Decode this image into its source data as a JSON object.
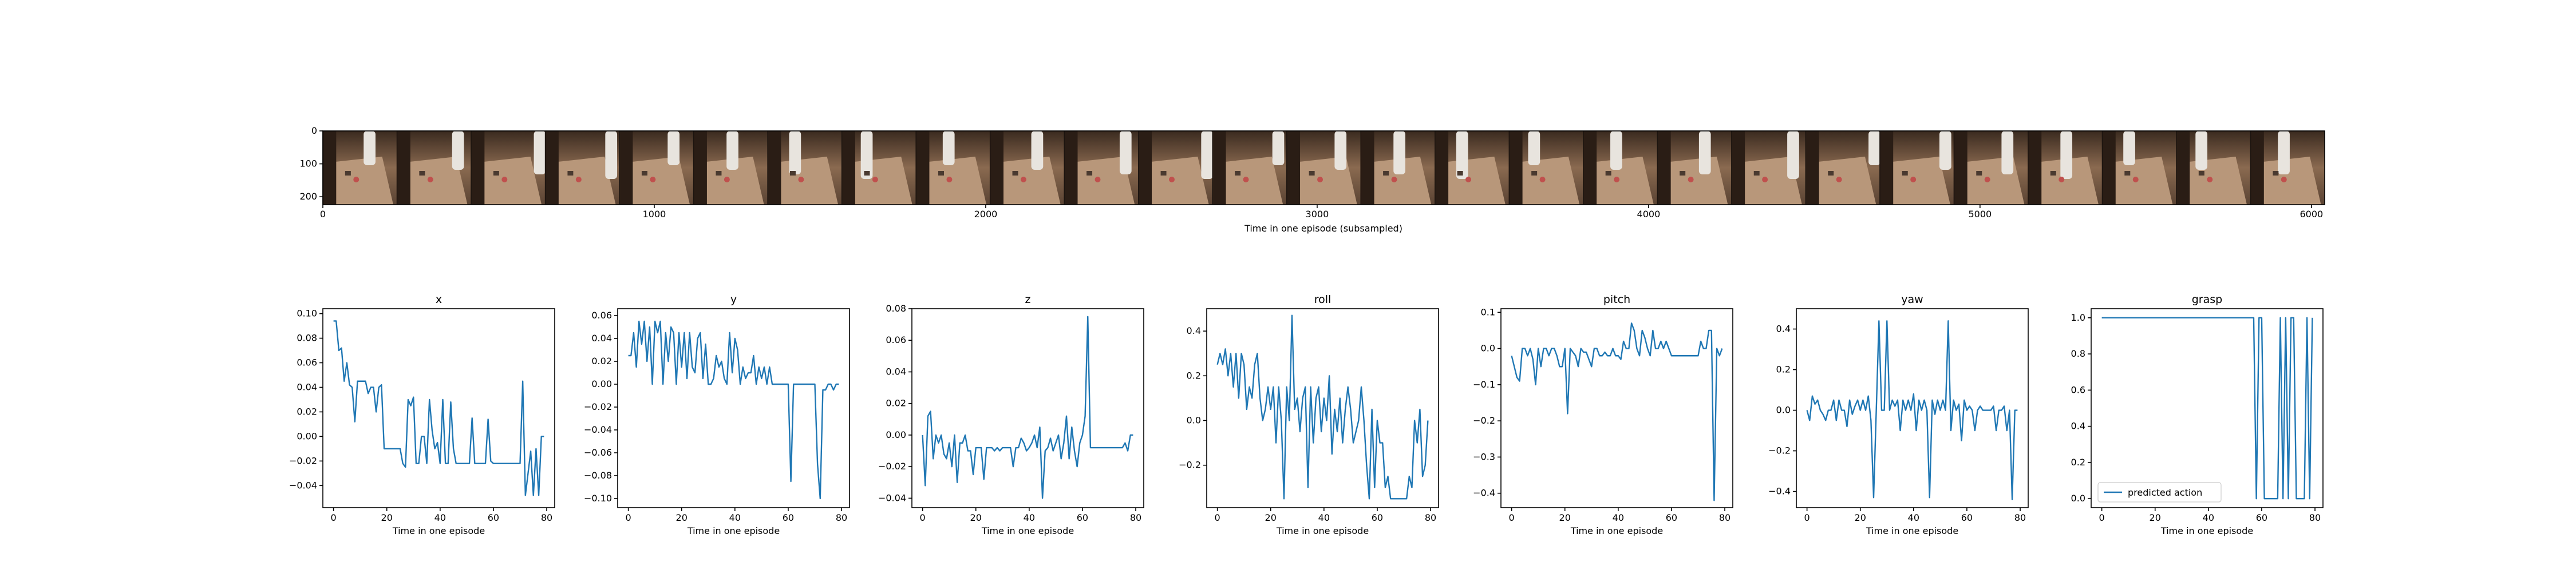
{
  "colors": {
    "series": "#1f77b4",
    "axis": "#000000",
    "background": "#ffffff"
  },
  "filmstrip": {
    "xlabel": "Time in one episode (subsampled)",
    "x_ticks": [
      0,
      1000,
      2000,
      3000,
      4000,
      5000,
      6000
    ],
    "y_ticks": [
      0,
      100,
      200
    ],
    "xlim": [
      0,
      6040
    ],
    "ylim": [
      0,
      224
    ],
    "frame_count": 27
  },
  "chart_data": [
    {
      "type": "line",
      "title": "x",
      "xlabel": "Time in one episode",
      "ylabel": "",
      "xlim": [
        -4,
        83
      ],
      "ylim": [
        -0.058,
        0.104
      ],
      "y_ticks": [
        -0.04,
        -0.02,
        0.0,
        0.02,
        0.04,
        0.06,
        0.08,
        0.1
      ],
      "y_tick_labels": [
        "−0.04",
        "−0.02",
        "0.00",
        "0.02",
        "0.04",
        "0.06",
        "0.08",
        "0.10"
      ],
      "x_ticks": [
        0,
        20,
        40,
        60,
        80
      ],
      "series": [
        {
          "values": [
            0.094,
            0.094,
            0.07,
            0.072,
            0.045,
            0.06,
            0.042,
            0.04,
            0.012,
            0.045,
            0.045,
            0.045,
            0.045,
            0.035,
            0.04,
            0.04,
            0.02,
            0.04,
            0.042,
            -0.01,
            -0.01,
            -0.01,
            -0.01,
            -0.01,
            -0.01,
            -0.01,
            -0.022,
            -0.025,
            0.03,
            0.025,
            0.032,
            -0.022,
            -0.022,
            0.0,
            0.0,
            -0.022,
            0.03,
            0.005,
            -0.01,
            -0.005,
            -0.022,
            0.03,
            -0.022,
            -0.022,
            0.028,
            -0.01,
            -0.022,
            -0.022,
            -0.022,
            -0.022,
            -0.022,
            -0.022,
            0.015,
            -0.022,
            -0.022,
            -0.022,
            -0.022,
            -0.022,
            0.014,
            -0.02,
            -0.022,
            -0.022,
            -0.022,
            -0.022,
            -0.022,
            -0.022,
            -0.022,
            -0.022,
            -0.022,
            -0.022,
            -0.022,
            0.045,
            -0.048,
            -0.03,
            -0.012,
            -0.048,
            -0.01,
            -0.048,
            0.0,
            0.0
          ]
        }
      ]
    },
    {
      "type": "line",
      "title": "y",
      "xlabel": "Time in one episode",
      "ylabel": "",
      "xlim": [
        -4,
        83
      ],
      "ylim": [
        -0.108,
        0.066
      ],
      "y_ticks": [
        -0.1,
        -0.08,
        -0.06,
        -0.04,
        -0.02,
        0.0,
        0.02,
        0.04,
        0.06
      ],
      "y_tick_labels": [
        "−0.10",
        "−0.08",
        "−0.06",
        "−0.04",
        "−0.02",
        "0.00",
        "0.02",
        "0.04",
        "0.06"
      ],
      "x_ticks": [
        0,
        20,
        40,
        60,
        80
      ],
      "series": [
        {
          "values": [
            0.025,
            0.025,
            0.045,
            0.015,
            0.055,
            0.035,
            0.055,
            0.02,
            0.05,
            0.0,
            0.055,
            0.045,
            0.055,
            0.0,
            0.045,
            0.02,
            0.05,
            0.045,
            0.0,
            0.045,
            0.015,
            0.045,
            0.005,
            0.045,
            0.015,
            0.01,
            0.04,
            0.045,
            0.005,
            0.035,
            0.0,
            0.0,
            0.005,
            0.025,
            0.015,
            0.02,
            0.005,
            0.0,
            0.045,
            0.01,
            0.04,
            0.03,
            0.0,
            0.015,
            0.005,
            0.01,
            0.01,
            0.025,
            0.0,
            0.015,
            0.005,
            0.015,
            0.0,
            0.015,
            0.0,
            0.0,
            0.0,
            0.0,
            0.0,
            0.0,
            0.0,
            -0.085,
            0.0,
            0.0,
            0.0,
            0.0,
            0.0,
            0.0,
            0.0,
            0.0,
            0.0,
            -0.07,
            -0.1,
            -0.005,
            -0.005,
            0.0,
            0.0,
            -0.005,
            0.0,
            0.0
          ]
        }
      ]
    },
    {
      "type": "line",
      "title": "z",
      "xlabel": "Time in one episode",
      "ylabel": "",
      "xlim": [
        -4,
        83
      ],
      "ylim": [
        -0.046,
        0.08
      ],
      "y_ticks": [
        -0.04,
        -0.02,
        0.0,
        0.02,
        0.04,
        0.06,
        0.08
      ],
      "y_tick_labels": [
        "−0.04",
        "−0.02",
        "0.00",
        "0.02",
        "0.04",
        "0.06",
        "0.08"
      ],
      "x_ticks": [
        0,
        20,
        40,
        60,
        80
      ],
      "series": [
        {
          "values": [
            0.0,
            -0.032,
            0.012,
            0.015,
            -0.015,
            0.0,
            -0.005,
            0.0,
            -0.012,
            -0.015,
            -0.005,
            -0.02,
            0.0,
            -0.03,
            -0.005,
            -0.005,
            0.0,
            -0.01,
            -0.01,
            -0.025,
            -0.008,
            -0.008,
            -0.008,
            -0.028,
            -0.008,
            -0.008,
            -0.008,
            -0.01,
            -0.008,
            -0.01,
            -0.008,
            -0.008,
            -0.008,
            -0.008,
            -0.02,
            -0.008,
            -0.008,
            -0.002,
            -0.005,
            -0.01,
            -0.008,
            -0.005,
            0.0,
            -0.008,
            0.005,
            -0.04,
            -0.01,
            -0.008,
            -0.002,
            -0.01,
            -0.005,
            0.0,
            -0.015,
            -0.005,
            0.012,
            -0.015,
            0.005,
            -0.01,
            -0.02,
            -0.005,
            0.0,
            0.012,
            0.075,
            -0.008,
            -0.008,
            -0.008,
            -0.008,
            -0.008,
            -0.008,
            -0.008,
            -0.008,
            -0.008,
            -0.008,
            -0.008,
            -0.008,
            -0.008,
            -0.005,
            -0.01,
            0.0,
            0.0
          ]
        }
      ]
    },
    {
      "type": "line",
      "title": "roll",
      "xlabel": "Time in one episode",
      "ylabel": "",
      "xlim": [
        -4,
        83
      ],
      "ylim": [
        -0.39,
        0.5
      ],
      "y_ticks": [
        -0.2,
        0.0,
        0.2,
        0.4
      ],
      "y_tick_labels": [
        "−0.2",
        "0.0",
        "0.2",
        "0.4"
      ],
      "x_ticks": [
        0,
        20,
        40,
        60,
        80
      ],
      "series": [
        {
          "values": [
            0.25,
            0.3,
            0.25,
            0.32,
            0.2,
            0.3,
            0.15,
            0.3,
            0.1,
            0.3,
            0.25,
            0.05,
            0.15,
            0.1,
            0.25,
            0.3,
            0.1,
            0.0,
            0.05,
            0.15,
            0.05,
            0.15,
            -0.1,
            0.15,
            0.0,
            -0.35,
            0.15,
            0.0,
            0.47,
            0.05,
            0.1,
            -0.05,
            0.1,
            0.15,
            -0.3,
            0.15,
            -0.1,
            0.1,
            0.15,
            -0.05,
            0.1,
            0.0,
            0.2,
            -0.15,
            0.05,
            -0.05,
            0.1,
            -0.1,
            0.05,
            0.15,
            0.05,
            -0.1,
            -0.05,
            0.0,
            0.15,
            0.0,
            -0.2,
            -0.35,
            0.05,
            -0.3,
            0.0,
            -0.1,
            -0.1,
            -0.3,
            -0.25,
            -0.35,
            -0.35,
            -0.35,
            -0.35,
            -0.35,
            -0.35,
            -0.35,
            -0.25,
            -0.3,
            0.0,
            -0.1,
            0.05,
            -0.25,
            -0.2,
            0.0
          ]
        }
      ]
    },
    {
      "type": "line",
      "title": "pitch",
      "xlabel": "Time in one episode",
      "ylabel": "",
      "xlim": [
        -4,
        83
      ],
      "ylim": [
        -0.44,
        0.11
      ],
      "y_ticks": [
        -0.4,
        -0.3,
        -0.2,
        -0.1,
        0.0,
        0.1
      ],
      "y_tick_labels": [
        "−0.4",
        "−0.3",
        "−0.2",
        "−0.1",
        "0.0",
        "0.1"
      ],
      "x_ticks": [
        0,
        20,
        40,
        60,
        80
      ],
      "series": [
        {
          "values": [
            -0.02,
            -0.05,
            -0.08,
            -0.09,
            0.0,
            0.0,
            -0.02,
            0.0,
            -0.03,
            -0.1,
            0.0,
            -0.05,
            0.0,
            0.0,
            -0.02,
            0.0,
            0.0,
            -0.02,
            -0.05,
            -0.05,
            0.0,
            -0.18,
            0.0,
            -0.01,
            -0.02,
            -0.05,
            0.0,
            -0.01,
            -0.01,
            -0.03,
            -0.05,
            0.0,
            0.0,
            -0.02,
            -0.02,
            -0.01,
            -0.02,
            -0.02,
            0.0,
            -0.02,
            -0.02,
            -0.03,
            0.02,
            0.0,
            0.0,
            0.07,
            0.05,
            0.0,
            -0.02,
            0.05,
            0.03,
            0.0,
            -0.02,
            0.05,
            0.0,
            0.0,
            0.02,
            0.0,
            0.02,
            0.0,
            -0.02,
            -0.02,
            -0.02,
            -0.02,
            -0.02,
            -0.02,
            -0.02,
            -0.02,
            -0.02,
            -0.02,
            -0.02,
            0.02,
            0.0,
            0.0,
            0.05,
            0.05,
            -0.42,
            0.0,
            -0.02,
            0.0
          ]
        }
      ]
    },
    {
      "type": "line",
      "title": "yaw",
      "xlabel": "Time in one episode",
      "ylabel": "",
      "xlim": [
        -4,
        83
      ],
      "ylim": [
        -0.48,
        0.5
      ],
      "y_ticks": [
        -0.4,
        -0.2,
        0.0,
        0.2,
        0.4
      ],
      "y_tick_labels": [
        "−0.4",
        "−0.2",
        "0.0",
        "0.2",
        "0.4"
      ],
      "x_ticks": [
        0,
        20,
        40,
        60,
        80
      ],
      "series": [
        {
          "values": [
            0.0,
            -0.05,
            0.07,
            0.03,
            0.05,
            0.0,
            -0.02,
            -0.05,
            0.0,
            0.0,
            0.05,
            -0.05,
            0.05,
            0.0,
            0.0,
            -0.08,
            0.05,
            -0.02,
            0.02,
            0.05,
            0.0,
            0.05,
            0.0,
            0.07,
            -0.05,
            -0.43,
            0.0,
            0.44,
            0.0,
            0.0,
            0.44,
            0.0,
            0.05,
            0.02,
            0.05,
            -0.1,
            0.05,
            0.0,
            0.05,
            0.0,
            0.08,
            -0.1,
            0.05,
            0.0,
            0.05,
            0.0,
            -0.43,
            0.05,
            -0.02,
            0.05,
            0.0,
            0.05,
            0.0,
            0.44,
            -0.1,
            0.05,
            0.0,
            0.03,
            -0.15,
            0.05,
            0.0,
            0.02,
            0.0,
            -0.1,
            0.0,
            0.02,
            0.0,
            0.0,
            0.0,
            0.0,
            0.02,
            -0.1,
            0.0,
            0.0,
            0.02,
            -0.1,
            0.0,
            -0.44,
            0.0,
            0.0
          ]
        }
      ]
    },
    {
      "type": "line",
      "title": "grasp",
      "xlabel": "Time in one episode",
      "ylabel": "",
      "xlim": [
        -4,
        83
      ],
      "ylim": [
        -0.05,
        1.05
      ],
      "y_ticks": [
        0.0,
        0.2,
        0.4,
        0.6,
        0.8,
        1.0
      ],
      "y_tick_labels": [
        "0.0",
        "0.2",
        "0.4",
        "0.6",
        "0.8",
        "1.0"
      ],
      "x_ticks": [
        0,
        20,
        40,
        60,
        80
      ],
      "legend": "predicted action",
      "series": [
        {
          "name": "predicted action",
          "values": [
            1,
            1,
            1,
            1,
            1,
            1,
            1,
            1,
            1,
            1,
            1,
            1,
            1,
            1,
            1,
            1,
            1,
            1,
            1,
            1,
            1,
            1,
            1,
            1,
            1,
            1,
            1,
            1,
            1,
            1,
            1,
            1,
            1,
            1,
            1,
            1,
            1,
            1,
            1,
            1,
            1,
            1,
            1,
            1,
            1,
            1,
            1,
            1,
            1,
            1,
            1,
            1,
            1,
            1,
            1,
            1,
            1,
            1,
            0,
            1,
            1,
            0,
            0,
            0,
            0,
            0,
            0,
            1,
            0,
            1,
            0,
            1,
            1,
            0,
            0,
            0,
            0,
            1,
            0,
            1
          ]
        }
      ]
    }
  ]
}
